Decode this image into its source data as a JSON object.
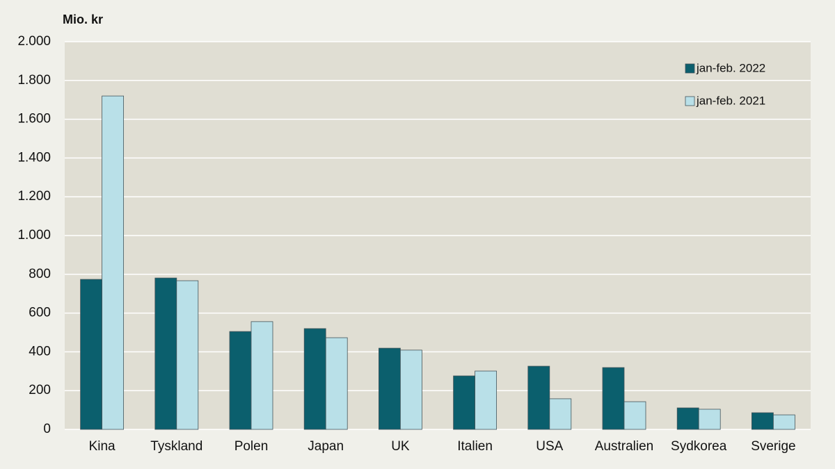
{
  "chart_data": {
    "type": "bar",
    "y_label": "Mio. kr",
    "categories": [
      "Kina",
      "Tyskland",
      "Polen",
      "Japan",
      "UK",
      "Italien",
      "USA",
      "Australien",
      "Sydkorea",
      "Sverige"
    ],
    "series": [
      {
        "name": "jan-feb. 2022",
        "color": "#0b5f6d",
        "values": [
          774,
          781,
          505,
          520,
          419,
          276,
          326,
          319,
          111,
          86
        ]
      },
      {
        "name": "jan-feb. 2021",
        "color": "#b9e0e8",
        "values": [
          1720,
          767,
          556,
          473,
          409,
          301,
          158,
          143,
          104,
          75
        ]
      }
    ],
    "ylim": [
      0,
      2000
    ],
    "yticks": [
      0,
      200,
      400,
      600,
      800,
      {
        "value": 1000,
        "label": "1.000"
      },
      {
        "value": 1200,
        "label": "1.200"
      },
      {
        "value": 1400,
        "label": "1.400"
      },
      {
        "value": 1600,
        "label": "1.600"
      },
      {
        "value": 1800,
        "label": "1.800"
      },
      {
        "value": 2000,
        "label": "2.000"
      }
    ],
    "grid": true,
    "legend": "upper-right"
  }
}
